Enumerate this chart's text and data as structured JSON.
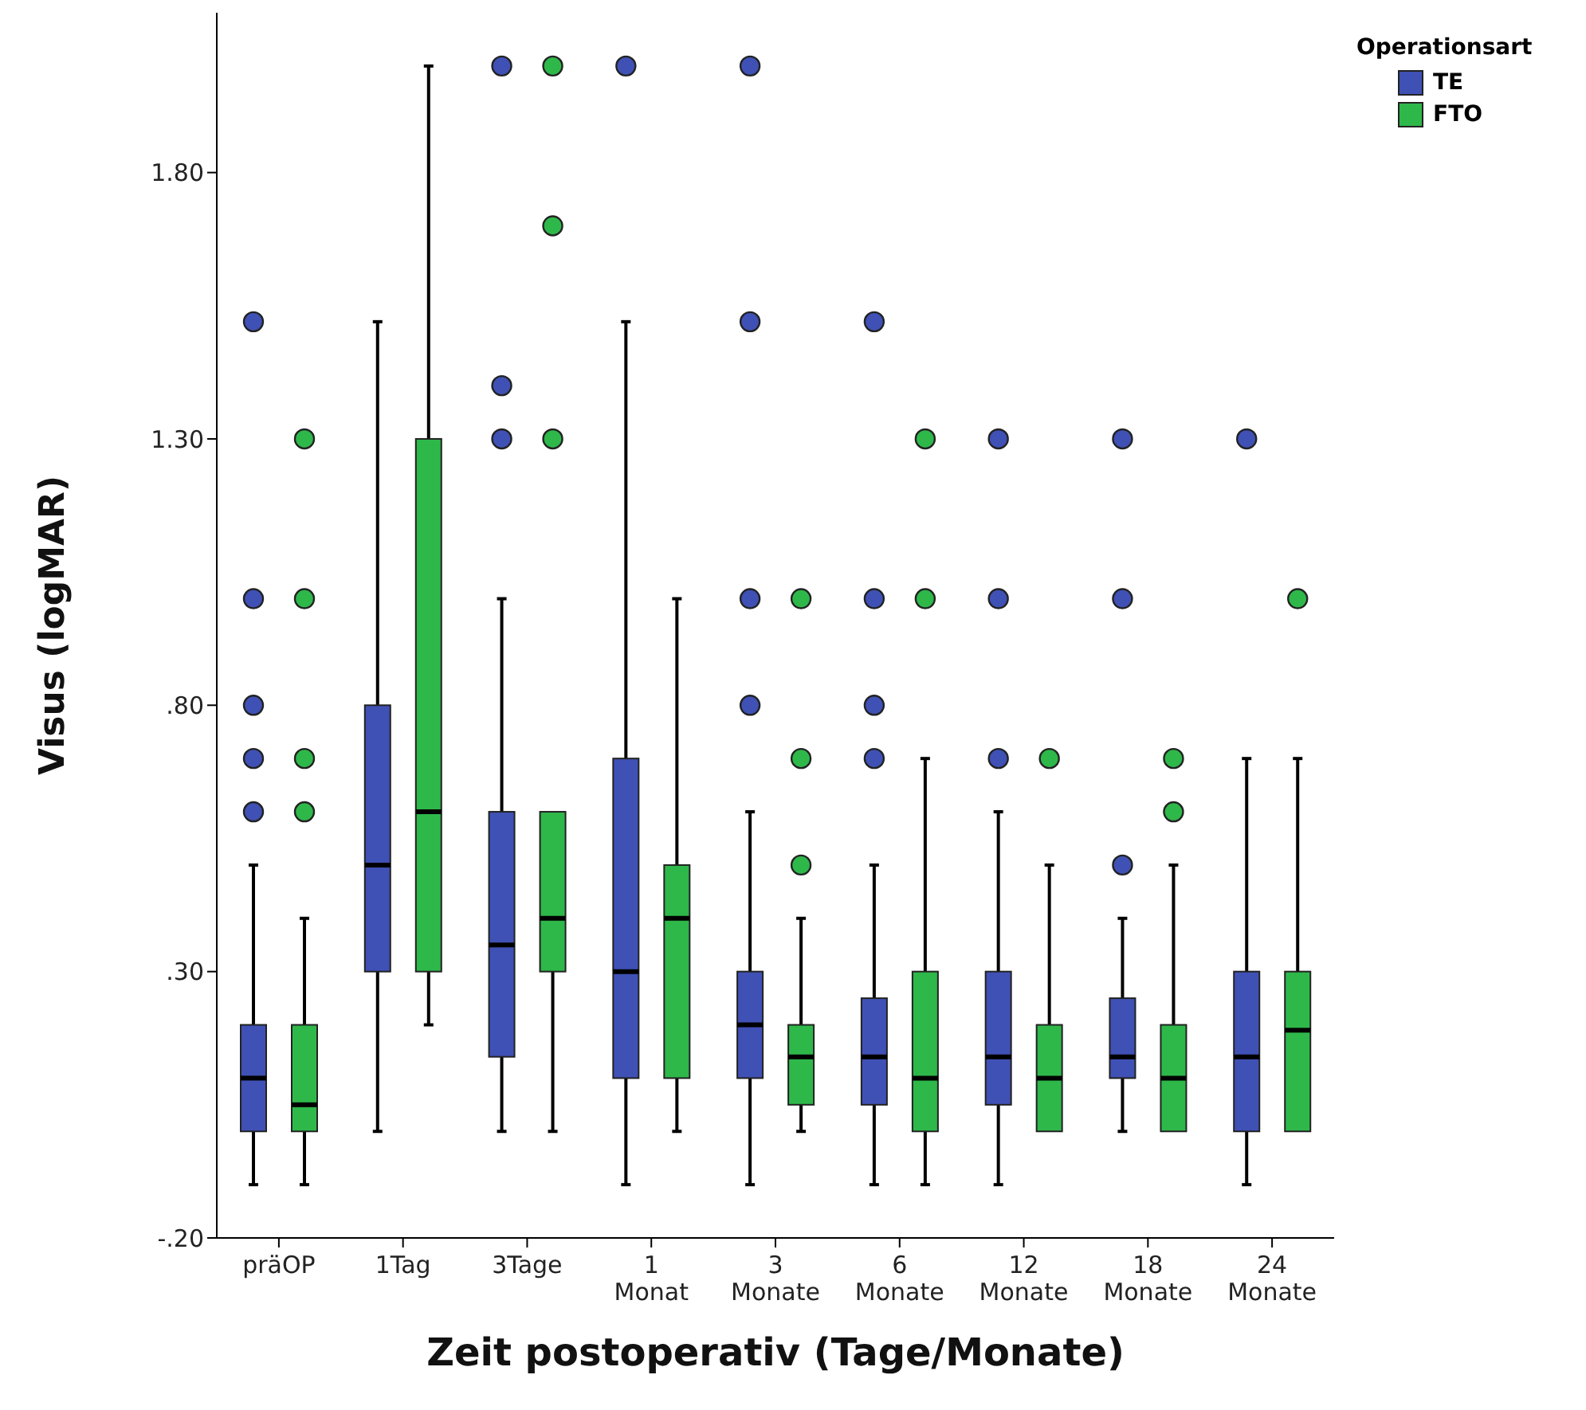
{
  "chart_data": {
    "type": "box",
    "xlabel": "Zeit postoperativ (Tage/Monate)",
    "ylabel": "Visus (logMAR)",
    "legend_title": "Operationsart",
    "legend": "top right",
    "grid": false,
    "categories": [
      "präOP",
      "1Tag",
      "3Tage",
      "1 Monat",
      "3 Monate",
      "6 Monate",
      "12 Monate",
      "18 Monate",
      "24 Monate"
    ],
    "ylim": [
      -0.2,
      2.1
    ],
    "yticks": [
      {
        "value": -0.2,
        "label": "-.20"
      },
      {
        "value": 0.3,
        "label": ".30"
      },
      {
        "value": 0.8,
        "label": ".80"
      },
      {
        "value": 1.3,
        "label": "1.30"
      },
      {
        "value": 1.8,
        "label": "1.80"
      }
    ],
    "series": [
      {
        "name": "TE",
        "color": "#3f51b5",
        "boxes": [
          {
            "low": -0.1,
            "q1": 0.0,
            "median": 0.1,
            "q3": 0.2,
            "high": 0.5,
            "outliers": [
              0.6,
              0.7,
              0.8,
              1.0,
              1.52
            ]
          },
          {
            "low": 0.0,
            "q1": 0.3,
            "median": 0.5,
            "q3": 0.8,
            "high": 1.52
          },
          {
            "low": 0.0,
            "q1": 0.14,
            "median": 0.35,
            "q3": 0.6,
            "high": 1.0,
            "outliers": [
              1.3,
              1.4,
              2.0
            ]
          },
          {
            "low": -0.1,
            "q1": 0.1,
            "median": 0.3,
            "q3": 0.7,
            "high": 1.52,
            "outliers": [
              2.0
            ]
          },
          {
            "low": -0.1,
            "q1": 0.1,
            "median": 0.2,
            "q3": 0.3,
            "high": 0.6,
            "outliers": [
              0.8,
              1.0,
              1.52,
              2.0
            ]
          },
          {
            "low": -0.1,
            "q1": 0.05,
            "median": 0.14,
            "q3": 0.25,
            "high": 0.5,
            "outliers": [
              0.7,
              0.8,
              1.0,
              1.52
            ]
          },
          {
            "low": -0.1,
            "q1": 0.05,
            "median": 0.14,
            "q3": 0.3,
            "high": 0.6,
            "outliers": [
              0.7,
              1.0,
              1.3
            ]
          },
          {
            "low": 0.0,
            "q1": 0.1,
            "median": 0.14,
            "q3": 0.25,
            "high": 0.4,
            "outliers": [
              0.5,
              1.0,
              1.3
            ]
          },
          {
            "low": -0.1,
            "q1": 0.0,
            "median": 0.14,
            "q3": 0.3,
            "high": 0.7,
            "outliers": [
              1.3
            ]
          }
        ]
      },
      {
        "name": "FTO",
        "color": "#2eb84a",
        "boxes": [
          {
            "low": -0.1,
            "q1": 0.0,
            "median": 0.05,
            "q3": 0.2,
            "high": 0.4,
            "outliers": [
              0.6,
              0.7,
              1.0,
              1.3
            ]
          },
          {
            "low": 0.2,
            "q1": 0.3,
            "median": 0.6,
            "q3": 1.3,
            "high": 2.0
          },
          {
            "low": 0.0,
            "q1": 0.3,
            "median": 0.4,
            "q3": 0.6,
            "high": 0.6,
            "outliers": [
              1.3,
              1.7,
              2.0
            ]
          },
          {
            "low": 0.0,
            "q1": 0.1,
            "median": 0.4,
            "q3": 0.5,
            "high": 1.0
          },
          {
            "low": 0.0,
            "q1": 0.05,
            "median": 0.14,
            "q3": 0.2,
            "high": 0.4,
            "outliers": [
              0.5,
              0.7,
              1.0
            ]
          },
          {
            "low": -0.1,
            "q1": 0.0,
            "median": 0.1,
            "q3": 0.3,
            "high": 0.7,
            "outliers": [
              1.0,
              1.3
            ]
          },
          {
            "low": 0.0,
            "q1": 0.0,
            "median": 0.1,
            "q3": 0.2,
            "high": 0.5,
            "outliers": [
              0.7
            ]
          },
          {
            "low": 0.0,
            "q1": 0.0,
            "median": 0.1,
            "q3": 0.2,
            "high": 0.5,
            "outliers": [
              0.6,
              0.7
            ]
          },
          {
            "low": 0.0,
            "q1": 0.0,
            "median": 0.19,
            "q3": 0.3,
            "high": 0.7,
            "outliers": [
              1.0
            ]
          }
        ]
      }
    ]
  }
}
